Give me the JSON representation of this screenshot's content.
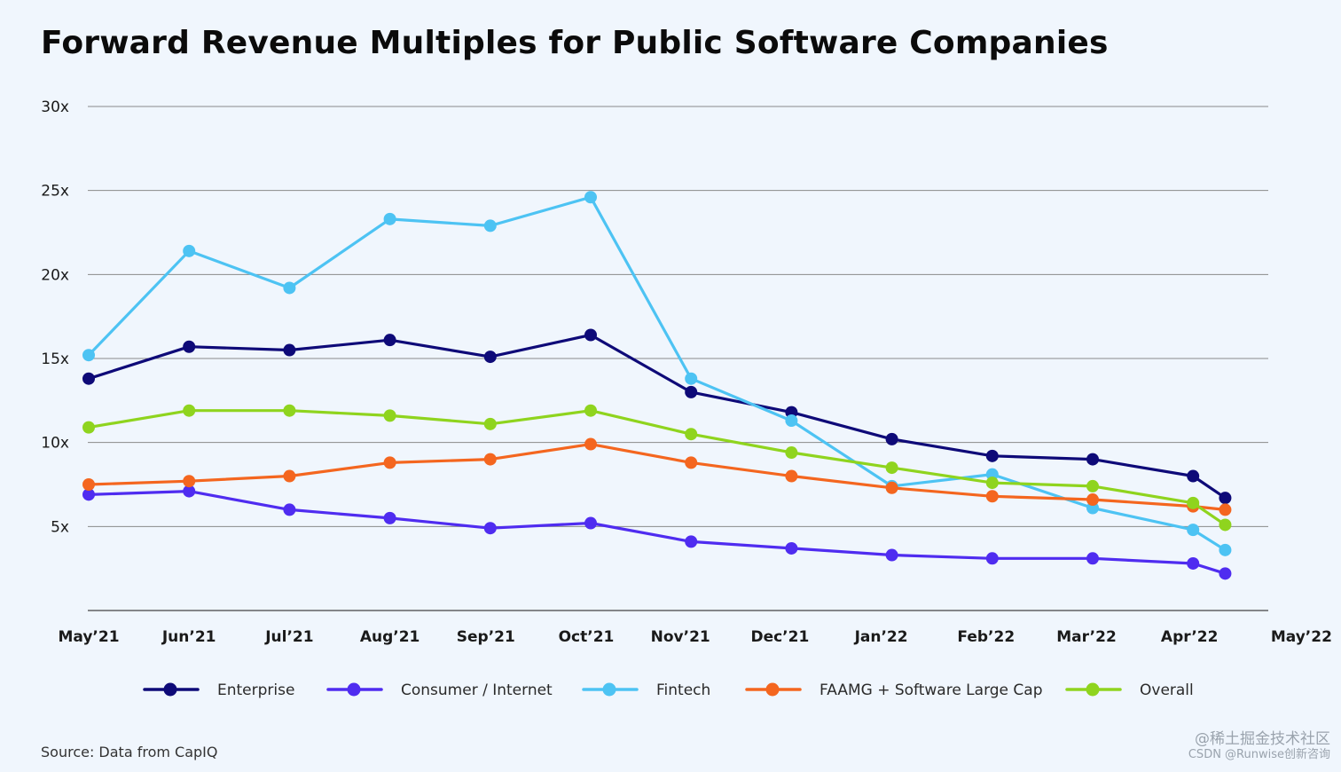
{
  "chart_data": {
    "type": "line",
    "title": "Forward Revenue Multiples for Public Software Companies",
    "xlabel": "",
    "ylabel": "",
    "categories": [
      "May’21",
      "Jun’21",
      "Jul’21",
      "Aug’21",
      "Sep’21",
      "Oct’21",
      "Nov’21",
      "Dec’21",
      "Jan’22",
      "Feb’22",
      "Mar’22",
      "Apr’22",
      "May’22"
    ],
    "x": [
      0,
      1,
      2,
      3,
      4,
      5,
      6,
      7,
      8,
      9,
      10,
      11,
      11.32
    ],
    "ylim": [
      0,
      30
    ],
    "yticks": [
      5,
      10,
      15,
      20,
      25,
      30
    ],
    "ytick_labels": [
      "5x",
      "10x",
      "15x",
      "20x",
      "25x",
      "30x"
    ],
    "grid": true,
    "legend_position": "bottom",
    "series": [
      {
        "name": "Enterprise",
        "color": "#0e0a78",
        "values": [
          13.8,
          15.7,
          15.5,
          16.1,
          15.1,
          16.4,
          13.0,
          11.8,
          10.2,
          9.2,
          9.0,
          8.0,
          6.7
        ]
      },
      {
        "name": "Consumer / Internet",
        "color": "#4f2cf0",
        "values": [
          6.9,
          7.1,
          6.0,
          5.5,
          4.9,
          5.2,
          4.1,
          3.7,
          3.3,
          3.1,
          3.1,
          2.8,
          2.2
        ]
      },
      {
        "name": "Fintech",
        "color": "#4dc3f3",
        "values": [
          15.2,
          21.4,
          19.2,
          23.3,
          22.9,
          24.6,
          13.8,
          11.3,
          7.4,
          8.1,
          6.1,
          4.8,
          3.6
        ]
      },
      {
        "name": "FAAMG + Software Large Cap",
        "color": "#f4661f",
        "values": [
          7.5,
          7.7,
          8.0,
          8.8,
          9.0,
          9.9,
          8.8,
          8.0,
          7.3,
          6.8,
          6.6,
          6.2,
          6.0
        ]
      },
      {
        "name": "Overall",
        "color": "#8fd41e",
        "values": [
          10.9,
          11.9,
          11.9,
          11.6,
          11.1,
          11.9,
          10.5,
          9.4,
          8.5,
          7.6,
          7.4,
          6.4,
          5.1
        ]
      }
    ]
  },
  "source": "Source: Data from CapIQ",
  "watermark": {
    "line1": "@稀土掘金技术社区",
    "line2": "CSDN @Runwise创新咨询"
  },
  "colors": {
    "background": "#f0f6fd",
    "gridline": "#8a8a8a",
    "axis": "#444444"
  }
}
